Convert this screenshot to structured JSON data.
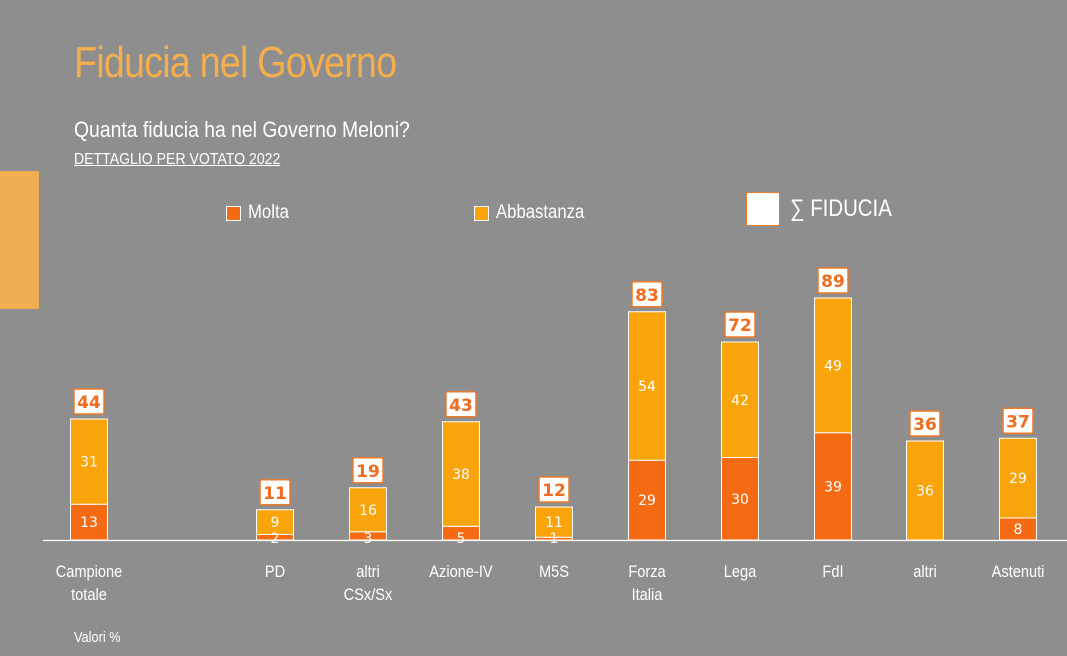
{
  "header": {
    "title": "Fiducia nel Governo",
    "subtitle": "Quanta fiducia ha nel Governo Meloni?",
    "subheading": "DETTAGLIO PER VOTATO 2022"
  },
  "legend": {
    "molta": "Molta",
    "abbastanza": "Abbastanza",
    "total": "∑ FIDUCIA"
  },
  "footnote": "Valori %",
  "colors": {
    "background": "#8e8e8e",
    "molta": "#f46b14",
    "abbastanza": "#f8a40a",
    "total_box_border": "#f07a26",
    "title": "#f5ae4b"
  },
  "chart_data": {
    "type": "bar",
    "stacked": true,
    "categories": [
      [
        "Campione",
        "totale"
      ],
      [
        "PD"
      ],
      [
        "altri",
        "CSx/Sx"
      ],
      [
        "Azione-IV"
      ],
      [
        "M5S"
      ],
      [
        "Forza",
        "Italia"
      ],
      [
        "Lega"
      ],
      [
        "FdI"
      ],
      [
        "altri"
      ],
      [
        "Astenuti"
      ]
    ],
    "series": [
      {
        "name": "Molta",
        "values": [
          13,
          2,
          3,
          5,
          1,
          29,
          30,
          39,
          null,
          8
        ]
      },
      {
        "name": "Abbastanza",
        "values": [
          31,
          9,
          16,
          38,
          11,
          54,
          42,
          49,
          36,
          29
        ]
      }
    ],
    "totals": [
      44,
      11,
      19,
      43,
      12,
      83,
      72,
      89,
      36,
      37
    ],
    "total_label": "∑ FIDUCIA",
    "grid": false,
    "legend_position": "top"
  }
}
